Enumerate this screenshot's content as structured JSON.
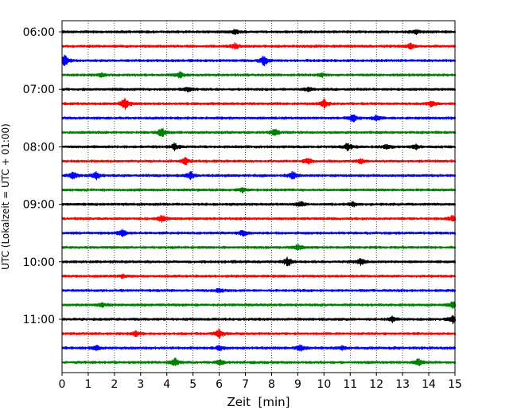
{
  "chart_data": {
    "type": "line",
    "title": "",
    "xlabel": "Zeit  [min]",
    "ylabel": "UTC (Lokalzeit = UTC + 01:00)",
    "xlim": [
      0,
      15
    ],
    "x_ticks": [
      "0",
      "1",
      "2",
      "3",
      "4",
      "5",
      "6",
      "7",
      "8",
      "9",
      "10",
      "11",
      "12",
      "13",
      "14",
      "15"
    ],
    "y_ticks": [
      "06:00",
      "07:00",
      "08:00",
      "09:00",
      "10:00",
      "11:00"
    ],
    "grid": "vertical-dotted",
    "series_colors": [
      "#000000",
      "#ff0000",
      "#0000ff",
      "#008000"
    ],
    "traces": [
      {
        "start": "06:00",
        "events": [
          [
            6.6,
            0.4
          ],
          [
            13.5,
            0.4
          ]
        ]
      },
      {
        "start": "06:15",
        "events": [
          [
            6.6,
            0.5
          ],
          [
            13.3,
            0.5
          ]
        ]
      },
      {
        "start": "06:30",
        "events": [
          [
            0.1,
            1.0
          ],
          [
            7.7,
            0.9
          ]
        ]
      },
      {
        "start": "06:45",
        "events": [
          [
            1.5,
            0.3
          ],
          [
            4.5,
            0.5
          ],
          [
            9.9,
            0.3
          ]
        ]
      },
      {
        "start": "07:00",
        "events": [
          [
            4.8,
            0.4
          ],
          [
            9.4,
            0.4
          ]
        ]
      },
      {
        "start": "07:15",
        "events": [
          [
            2.4,
            1.0
          ],
          [
            10.0,
            0.8
          ],
          [
            14.1,
            0.5
          ]
        ]
      },
      {
        "start": "07:30",
        "events": [
          [
            11.1,
            0.8
          ],
          [
            12.0,
            0.5
          ]
        ]
      },
      {
        "start": "07:45",
        "events": [
          [
            3.8,
            0.8
          ],
          [
            8.1,
            0.7
          ]
        ]
      },
      {
        "start": "08:00",
        "events": [
          [
            4.3,
            0.6
          ],
          [
            10.9,
            0.7
          ],
          [
            12.4,
            0.4
          ],
          [
            13.5,
            0.4
          ]
        ]
      },
      {
        "start": "08:15",
        "events": [
          [
            4.7,
            0.6
          ],
          [
            9.4,
            0.6
          ],
          [
            11.4,
            0.4
          ]
        ]
      },
      {
        "start": "08:30",
        "events": [
          [
            0.4,
            0.7
          ],
          [
            1.3,
            0.7
          ],
          [
            4.9,
            0.7
          ],
          [
            8.8,
            0.7
          ]
        ]
      },
      {
        "start": "08:45",
        "events": [
          [
            6.9,
            0.5
          ]
        ]
      },
      {
        "start": "09:00",
        "events": [
          [
            9.1,
            0.4
          ],
          [
            11.1,
            0.4
          ]
        ]
      },
      {
        "start": "09:15",
        "events": [
          [
            3.8,
            0.7
          ],
          [
            14.9,
            0.5
          ]
        ]
      },
      {
        "start": "09:30",
        "events": [
          [
            2.3,
            0.6
          ],
          [
            6.9,
            0.5
          ]
        ]
      },
      {
        "start": "09:45",
        "events": [
          [
            9.0,
            0.5
          ]
        ]
      },
      {
        "start": "10:00",
        "events": [
          [
            8.6,
            0.8
          ],
          [
            11.4,
            0.6
          ]
        ]
      },
      {
        "start": "10:15",
        "events": [
          [
            2.3,
            0.3
          ]
        ]
      },
      {
        "start": "10:30",
        "events": [
          [
            6.0,
            0.3
          ]
        ]
      },
      {
        "start": "10:45",
        "events": [
          [
            1.5,
            0.3
          ],
          [
            14.9,
            0.6
          ]
        ]
      },
      {
        "start": "11:00",
        "events": [
          [
            12.6,
            0.5
          ],
          [
            14.9,
            0.7
          ]
        ]
      },
      {
        "start": "11:15",
        "events": [
          [
            2.8,
            0.4
          ],
          [
            6.0,
            0.8
          ]
        ]
      },
      {
        "start": "11:30",
        "events": [
          [
            1.3,
            0.5
          ],
          [
            6.0,
            0.4
          ],
          [
            9.1,
            0.6
          ],
          [
            10.7,
            0.3
          ]
        ]
      },
      {
        "start": "11:45",
        "events": [
          [
            4.3,
            0.8
          ],
          [
            6.0,
            0.5
          ],
          [
            13.6,
            0.7
          ]
        ]
      }
    ]
  }
}
